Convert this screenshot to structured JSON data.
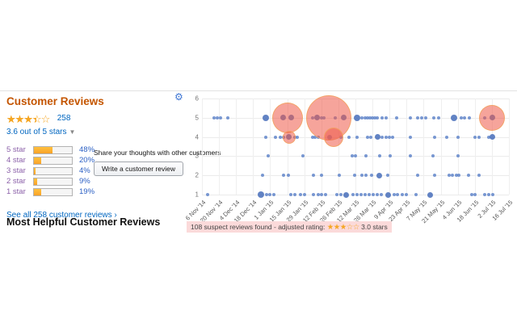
{
  "reviews_panel": {
    "title": "Customer Reviews",
    "total_reviews": "258",
    "avg_rating_label": "3.6 out of 5 stars",
    "star_fill_pct": 70,
    "histogram": [
      {
        "label": "5 star",
        "pct": "48%",
        "value": 48
      },
      {
        "label": "4 star",
        "pct": "20%",
        "value": 20
      },
      {
        "label": "3 star",
        "pct": "4%",
        "value": 4
      },
      {
        "label": "2 star",
        "pct": "9%",
        "value": 9
      },
      {
        "label": "1 star",
        "pct": "19%",
        "value": 19
      }
    ],
    "see_all_label": "See all 258 customer reviews ›",
    "share_prompt": "Share your thoughts with other customers",
    "write_review_button": "Write a customer review"
  },
  "most_helpful_title": "Most Helpful Customer Reviews",
  "gear_icon_char": "⚙",
  "suspect_banner": {
    "text": "108 suspect reviews found - adjusted rating: ",
    "stars_filled": "★★★",
    "stars_empty": "☆☆",
    "rating_label": " 3.0 stars"
  },
  "colors": {
    "heading_accent": "#C45500",
    "link_blue": "#0066C0",
    "star_orange": "#F5A623",
    "dot_blue": "#587EC7",
    "suspect_red": "#EE5A48",
    "banner_bg": "#FBDADA"
  },
  "chart_data": {
    "type": "scatter",
    "title": "Review timeline (rating vs. date, bubble size = cluster of suspect reviews)",
    "x_tick_labels": [
      "6 Nov '14",
      "20 Nov '14",
      "4 Dec '14",
      "18 Dec '14",
      "1 Jan '15",
      "15 Jan '15",
      "29 Jan '15",
      "12 Feb '15",
      "26 Feb '15",
      "12 Mar '15",
      "26 Mar '15",
      "9 Apr '15",
      "23 Apr '15",
      "7 May '15",
      "21 May '15",
      "4 Jun '15",
      "18 Jun '15",
      "2 Jul '15",
      "16 Jul '15"
    ],
    "y_ticks": [
      6,
      5,
      4,
      3,
      2,
      1
    ],
    "ylim": [
      1,
      6
    ],
    "grid": true,
    "legend": "none",
    "points_format": "[x_in_tick_units, rating, radius_px]",
    "points": [
      [
        0.7,
        5,
        2
      ],
      [
        0.9,
        5,
        2
      ],
      [
        1.1,
        5,
        2
      ],
      [
        1.5,
        5,
        2
      ],
      [
        3.75,
        5,
        4
      ],
      [
        4.75,
        5,
        3.5
      ],
      [
        5.25,
        5,
        3.5
      ],
      [
        6.5,
        5,
        2
      ],
      [
        6.75,
        5,
        3.5
      ],
      [
        7.0,
        5,
        2
      ],
      [
        7.15,
        5,
        2
      ],
      [
        7.8,
        5,
        2
      ],
      [
        8.3,
        5,
        3.5
      ],
      [
        9.1,
        5,
        4
      ],
      [
        9.4,
        5,
        2
      ],
      [
        9.55,
        5,
        2
      ],
      [
        9.7,
        5,
        2
      ],
      [
        9.85,
        5,
        2
      ],
      [
        10.0,
        5,
        2
      ],
      [
        10.15,
        5,
        2
      ],
      [
        10.3,
        5,
        2
      ],
      [
        10.55,
        5,
        2
      ],
      [
        10.8,
        5,
        2
      ],
      [
        11.4,
        5,
        2
      ],
      [
        12.2,
        5,
        2
      ],
      [
        12.65,
        5,
        2
      ],
      [
        12.9,
        5,
        2
      ],
      [
        13.1,
        5,
        2
      ],
      [
        13.6,
        5,
        2
      ],
      [
        13.9,
        5,
        2
      ],
      [
        14.8,
        5,
        4
      ],
      [
        15.2,
        5,
        2
      ],
      [
        15.4,
        5,
        2
      ],
      [
        15.7,
        5,
        2
      ],
      [
        16.6,
        5,
        2
      ],
      [
        17.05,
        5,
        3.5
      ],
      [
        3.75,
        4,
        2
      ],
      [
        4.3,
        4,
        2
      ],
      [
        4.6,
        4,
        2
      ],
      [
        4.8,
        4,
        2
      ],
      [
        5.1,
        4,
        3.5
      ],
      [
        5.45,
        4,
        2
      ],
      [
        5.6,
        4,
        2
      ],
      [
        6.5,
        4,
        2
      ],
      [
        6.65,
        4,
        2
      ],
      [
        6.8,
        4,
        2
      ],
      [
        7.5,
        4,
        3
      ],
      [
        8.15,
        4,
        2
      ],
      [
        8.6,
        4,
        2
      ],
      [
        9.1,
        4,
        2
      ],
      [
        9.7,
        4,
        2
      ],
      [
        9.9,
        4,
        2
      ],
      [
        10.3,
        4,
        3.5
      ],
      [
        10.55,
        4,
        2
      ],
      [
        10.8,
        4,
        2
      ],
      [
        11.0,
        4,
        2
      ],
      [
        11.2,
        4,
        2
      ],
      [
        12.2,
        4,
        2
      ],
      [
        13.65,
        4,
        2
      ],
      [
        14.35,
        4,
        2
      ],
      [
        15.0,
        4,
        2
      ],
      [
        16.0,
        4,
        2
      ],
      [
        16.25,
        4,
        2
      ],
      [
        16.8,
        4,
        2
      ],
      [
        17.05,
        4,
        3.5
      ],
      [
        3.9,
        3,
        2
      ],
      [
        5.9,
        3,
        2
      ],
      [
        8.8,
        3,
        2
      ],
      [
        9.0,
        3,
        2
      ],
      [
        9.6,
        3,
        2
      ],
      [
        10.4,
        3,
        2
      ],
      [
        11.05,
        3,
        2
      ],
      [
        12.2,
        3,
        2
      ],
      [
        13.55,
        3,
        2
      ],
      [
        15.0,
        3,
        2
      ],
      [
        3.55,
        2,
        2
      ],
      [
        4.8,
        2,
        2
      ],
      [
        5.05,
        2,
        2
      ],
      [
        6.55,
        2,
        2
      ],
      [
        7.0,
        2,
        2
      ],
      [
        8.05,
        2,
        2
      ],
      [
        8.95,
        2,
        2
      ],
      [
        9.4,
        2,
        2
      ],
      [
        9.6,
        2,
        2
      ],
      [
        9.95,
        2,
        2
      ],
      [
        10.4,
        2,
        3.5
      ],
      [
        10.9,
        2,
        2
      ],
      [
        12.65,
        2,
        2
      ],
      [
        13.65,
        2,
        2
      ],
      [
        14.5,
        2,
        2
      ],
      [
        14.7,
        2,
        2
      ],
      [
        14.9,
        2,
        2
      ],
      [
        15.05,
        2,
        2
      ],
      [
        15.65,
        2,
        2
      ],
      [
        16.25,
        2,
        2
      ],
      [
        0.35,
        1,
        2
      ],
      [
        3.45,
        1,
        4
      ],
      [
        3.8,
        1,
        2
      ],
      [
        4.0,
        1,
        2
      ],
      [
        4.2,
        1,
        2
      ],
      [
        5.2,
        1,
        2
      ],
      [
        5.45,
        1,
        2
      ],
      [
        5.8,
        1,
        2
      ],
      [
        6.0,
        1,
        2
      ],
      [
        6.55,
        1,
        2
      ],
      [
        6.8,
        1,
        2
      ],
      [
        7.0,
        1,
        2
      ],
      [
        7.25,
        1,
        2
      ],
      [
        7.9,
        1,
        2
      ],
      [
        8.15,
        1,
        2
      ],
      [
        8.45,
        1,
        3.5
      ],
      [
        8.85,
        1,
        2
      ],
      [
        9.1,
        1,
        2
      ],
      [
        9.35,
        1,
        2
      ],
      [
        9.55,
        1,
        2
      ],
      [
        9.8,
        1,
        2
      ],
      [
        10.05,
        1,
        2
      ],
      [
        10.3,
        1,
        2
      ],
      [
        10.5,
        1,
        2
      ],
      [
        10.9,
        1,
        3.5
      ],
      [
        11.25,
        1,
        2
      ],
      [
        11.45,
        1,
        2
      ],
      [
        11.75,
        1,
        2
      ],
      [
        12.0,
        1,
        2
      ],
      [
        12.55,
        1,
        2
      ],
      [
        13.4,
        1,
        3.5
      ],
      [
        15.8,
        1,
        2
      ],
      [
        16.0,
        1,
        2
      ],
      [
        16.6,
        1,
        2
      ],
      [
        16.8,
        1,
        2
      ],
      [
        17.05,
        1,
        2
      ]
    ],
    "suspect_clusters": [
      [
        5.0,
        5,
        19
      ],
      [
        7.45,
        5,
        28
      ],
      [
        5.1,
        4,
        8
      ],
      [
        7.7,
        4,
        12
      ],
      [
        17.0,
        5,
        16
      ]
    ]
  }
}
